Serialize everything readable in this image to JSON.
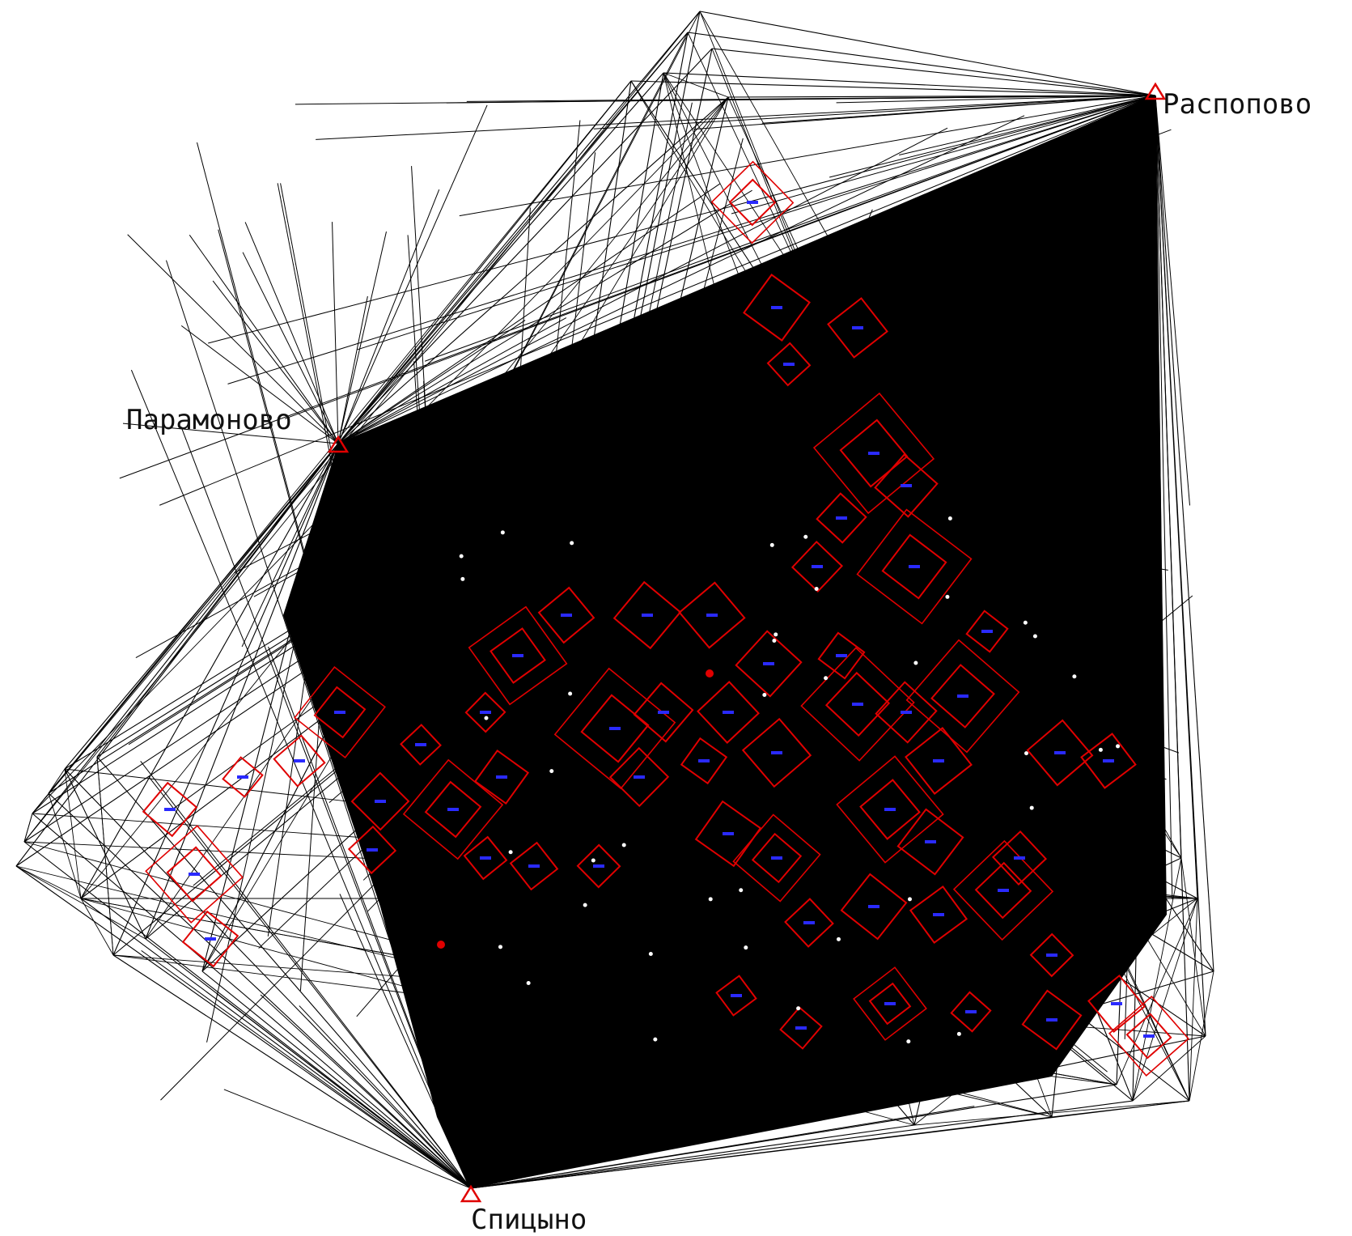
{
  "map": {
    "stations": [
      {
        "id": "paramonovo",
        "name": "Парамоново",
        "symbol": "triangle"
      },
      {
        "id": "raspopovo",
        "name": "Распопово",
        "symbol": "triangle"
      },
      {
        "id": "spitsyno",
        "name": "Спицыно",
        "symbol": "triangle"
      }
    ],
    "colors": {
      "ray": "#000000",
      "parcel": "#e00000",
      "parcel_label": "#2a2aff",
      "station": "#e00000",
      "background": "#ffffff"
    }
  }
}
